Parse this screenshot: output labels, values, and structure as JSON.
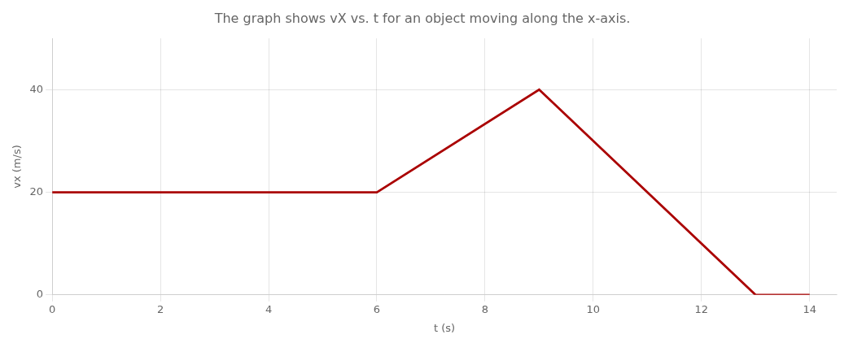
{
  "chart_data": {
    "type": "line",
    "title": "The graph shows vX vs. t for an object moving along the x-axis.",
    "x_label": "t (s)",
    "y_label": "vx (m/s)",
    "x": [
      0,
      6,
      9,
      13,
      14
    ],
    "values": [
      20,
      20,
      40,
      0,
      0
    ],
    "color": "#aa0000",
    "xlim": [
      0,
      14.5
    ],
    "ylim": [
      0,
      50
    ],
    "xticks": [
      0,
      2,
      4,
      6,
      8,
      10,
      12,
      14
    ],
    "yticks": [
      0,
      20,
      40
    ],
    "grid": true
  }
}
